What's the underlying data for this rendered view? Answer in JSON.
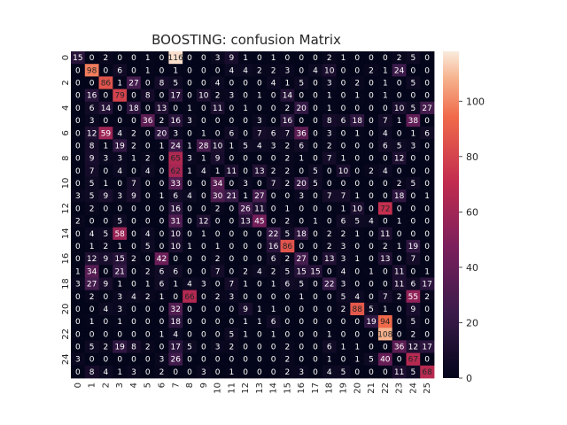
{
  "chart_data": {
    "type": "heatmap",
    "title": "BOOSTING: confusion Matrix",
    "xlabel": "",
    "ylabel": "",
    "x_ticks": [
      "0",
      "1",
      "2",
      "3",
      "4",
      "5",
      "6",
      "7",
      "8",
      "9",
      "10",
      "11",
      "12",
      "13",
      "14",
      "15",
      "16",
      "17",
      "18",
      "19",
      "20",
      "21",
      "22",
      "23",
      "24",
      "25"
    ],
    "y_ticks": [
      "0",
      "2",
      "4",
      "6",
      "8",
      "10",
      "12",
      "14",
      "16",
      "18",
      "20",
      "22",
      "24"
    ],
    "n_classes": 26,
    "colorbar": {
      "vmin": 0,
      "vmax": 118,
      "ticks": [
        0,
        20,
        40,
        60,
        80,
        100
      ],
      "ticklabels": [
        "0",
        "20",
        "40",
        "60",
        "80",
        "100"
      ]
    },
    "colors": {
      "low": "#03051a",
      "high": "#faebdd"
    },
    "matrix": [
      [
        15,
        0,
        2,
        0,
        0,
        1,
        0,
        116,
        0,
        0,
        3,
        9,
        1,
        0,
        1,
        0,
        0,
        0,
        2,
        1,
        0,
        0,
        0,
        2,
        5,
        0
      ],
      [
        0,
        98,
        0,
        6,
        0,
        1,
        0,
        1,
        0,
        0,
        0,
        4,
        4,
        2,
        2,
        3,
        0,
        4,
        10,
        0,
        0,
        2,
        1,
        24,
        0,
        0
      ],
      [
        0,
        0,
        86,
        1,
        27,
        0,
        8,
        5,
        0,
        0,
        4,
        0,
        0,
        0,
        4,
        1,
        5,
        0,
        3,
        0,
        2,
        0,
        1,
        0,
        5,
        0
      ],
      [
        0,
        16,
        0,
        79,
        0,
        8,
        0,
        17,
        0,
        10,
        2,
        3,
        0,
        1,
        0,
        14,
        0,
        0,
        1,
        0,
        1,
        0,
        1,
        0,
        0,
        0
      ],
      [
        0,
        6,
        14,
        0,
        18,
        0,
        13,
        0,
        1,
        0,
        11,
        0,
        1,
        0,
        0,
        2,
        20,
        0,
        1,
        0,
        0,
        0,
        0,
        10,
        5,
        27
      ],
      [
        0,
        3,
        0,
        0,
        0,
        36,
        2,
        16,
        3,
        0,
        0,
        0,
        0,
        3,
        0,
        16,
        0,
        0,
        8,
        6,
        18,
        0,
        7,
        1,
        38,
        0
      ],
      [
        0,
        12,
        59,
        4,
        2,
        0,
        20,
        3,
        0,
        1,
        0,
        6,
        0,
        7,
        6,
        7,
        36,
        0,
        3,
        0,
        1,
        0,
        4,
        0,
        1,
        6
      ],
      [
        0,
        8,
        1,
        19,
        2,
        0,
        1,
        24,
        1,
        28,
        10,
        1,
        5,
        4,
        3,
        2,
        6,
        0,
        2,
        0,
        0,
        0,
        6,
        5,
        3,
        0
      ],
      [
        0,
        9,
        3,
        3,
        1,
        2,
        0,
        65,
        3,
        1,
        9,
        0,
        0,
        0,
        0,
        2,
        1,
        0,
        7,
        1,
        0,
        0,
        0,
        12,
        0,
        0
      ],
      [
        0,
        7,
        0,
        4,
        0,
        4,
        0,
        62,
        1,
        4,
        1,
        11,
        0,
        13,
        2,
        2,
        0,
        5,
        0,
        10,
        0,
        2,
        4,
        0,
        0,
        0
      ],
      [
        0,
        5,
        1,
        0,
        7,
        0,
        0,
        33,
        0,
        0,
        34,
        0,
        3,
        0,
        7,
        2,
        20,
        5,
        0,
        0,
        0,
        0,
        0,
        2,
        5,
        0
      ],
      [
        3,
        5,
        9,
        3,
        9,
        0,
        1,
        6,
        4,
        0,
        30,
        21,
        1,
        27,
        0,
        0,
        3,
        0,
        7,
        7,
        1,
        0,
        0,
        18,
        0,
        1
      ],
      [
        0,
        2,
        0,
        0,
        0,
        0,
        0,
        16,
        0,
        0,
        2,
        0,
        26,
        11,
        0,
        1,
        0,
        0,
        0,
        1,
        10,
        0,
        72,
        0,
        0,
        0
      ],
      [
        2,
        0,
        0,
        5,
        0,
        0,
        0,
        31,
        0,
        12,
        0,
        0,
        13,
        45,
        0,
        2,
        0,
        1,
        0,
        6,
        5,
        4,
        0,
        1,
        0,
        0
      ],
      [
        0,
        4,
        5,
        58,
        0,
        4,
        0,
        10,
        0,
        1,
        0,
        0,
        0,
        0,
        22,
        5,
        18,
        0,
        2,
        2,
        1,
        0,
        11,
        0,
        0,
        0
      ],
      [
        0,
        1,
        2,
        1,
        0,
        5,
        0,
        10,
        1,
        0,
        1,
        0,
        0,
        0,
        16,
        86,
        0,
        0,
        2,
        3,
        0,
        0,
        2,
        1,
        19,
        0
      ],
      [
        0,
        12,
        9,
        15,
        2,
        0,
        42,
        0,
        0,
        0,
        2,
        0,
        0,
        0,
        6,
        2,
        27,
        0,
        13,
        3,
        1,
        0,
        13,
        0,
        7,
        0
      ],
      [
        1,
        34,
        0,
        21,
        0,
        2,
        6,
        6,
        0,
        0,
        7,
        0,
        2,
        4,
        2,
        5,
        15,
        15,
        0,
        4,
        0,
        1,
        0,
        11,
        0,
        1
      ],
      [
        3,
        27,
        9,
        1,
        0,
        1,
        6,
        1,
        4,
        3,
        0,
        7,
        1,
        0,
        1,
        6,
        5,
        0,
        22,
        3,
        0,
        0,
        0,
        11,
        6,
        17
      ],
      [
        0,
        2,
        0,
        3,
        4,
        2,
        1,
        0,
        66,
        0,
        2,
        3,
        0,
        0,
        0,
        0,
        1,
        0,
        0,
        5,
        4,
        0,
        7,
        2,
        55,
        2
      ],
      [
        0,
        0,
        4,
        3,
        0,
        0,
        0,
        32,
        0,
        0,
        0,
        0,
        9,
        1,
        1,
        0,
        0,
        0,
        0,
        2,
        88,
        5,
        1,
        0,
        9,
        0
      ],
      [
        0,
        1,
        0,
        1,
        0,
        0,
        0,
        18,
        0,
        0,
        0,
        0,
        1,
        1,
        6,
        0,
        0,
        0,
        0,
        0,
        0,
        19,
        94,
        0,
        5,
        0
      ],
      [
        0,
        0,
        0,
        0,
        0,
        0,
        1,
        4,
        0,
        0,
        0,
        5,
        1,
        0,
        1,
        0,
        0,
        0,
        1,
        0,
        0,
        0,
        108,
        0,
        2,
        0
      ],
      [
        0,
        5,
        2,
        19,
        8,
        2,
        0,
        17,
        5,
        0,
        3,
        2,
        0,
        0,
        0,
        2,
        0,
        0,
        6,
        1,
        1,
        0,
        0,
        36,
        12,
        17
      ],
      [
        3,
        0,
        0,
        0,
        0,
        0,
        3,
        26,
        0,
        0,
        0,
        0,
        0,
        0,
        0,
        2,
        0,
        0,
        1,
        0,
        1,
        5,
        40,
        0,
        67,
        0
      ],
      [
        0,
        8,
        4,
        1,
        3,
        0,
        2,
        0,
        0,
        3,
        0,
        1,
        0,
        0,
        0,
        2,
        3,
        0,
        4,
        5,
        0,
        0,
        0,
        11,
        5,
        68
      ]
    ]
  }
}
